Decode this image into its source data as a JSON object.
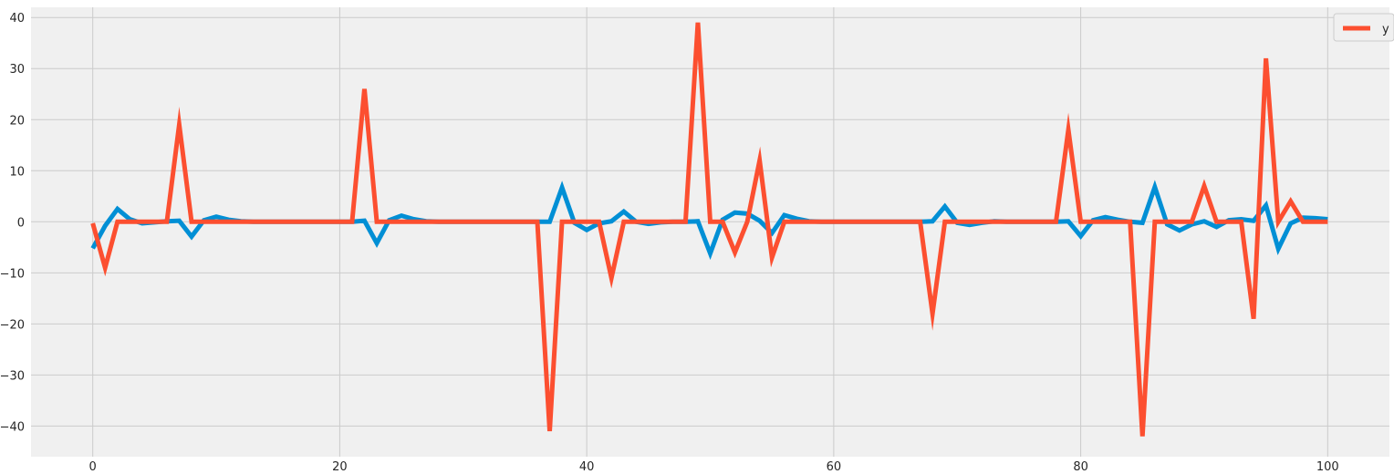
{
  "chart_data": {
    "type": "line",
    "title": "",
    "xlabel": "",
    "ylabel": "",
    "xlim": [
      -5,
      105
    ],
    "ylim": [
      -46,
      42
    ],
    "grid": true,
    "legend_position": "top-right",
    "xticks": [
      0,
      20,
      40,
      60,
      80,
      100
    ],
    "yticks": [
      40,
      30,
      20,
      10,
      0,
      -10,
      -20,
      -30,
      -40
    ],
    "xtick_labels": [
      "0",
      "20",
      "40",
      "60",
      "80",
      "100"
    ],
    "ytick_labels": [
      "40",
      "30",
      "20",
      "10",
      "0",
      "−10",
      "−20",
      "−30",
      "−40"
    ],
    "series": [
      {
        "name": "",
        "color": "#008fd5",
        "in_legend": false,
        "x": [
          0,
          1,
          2,
          3,
          4,
          5,
          6,
          7,
          8,
          9,
          10,
          11,
          12,
          13,
          14,
          15,
          16,
          17,
          18,
          19,
          20,
          21,
          22,
          23,
          24,
          25,
          26,
          27,
          28,
          29,
          30,
          31,
          32,
          33,
          34,
          35,
          36,
          37,
          38,
          39,
          40,
          41,
          42,
          43,
          44,
          45,
          46,
          47,
          48,
          49,
          50,
          51,
          52,
          53,
          54,
          55,
          56,
          57,
          58,
          59,
          60,
          61,
          62,
          63,
          64,
          65,
          66,
          67,
          68,
          69,
          70,
          71,
          72,
          73,
          74,
          75,
          76,
          77,
          78,
          79,
          80,
          81,
          82,
          83,
          84,
          85,
          86,
          87,
          88,
          89,
          90,
          91,
          92,
          93,
          94,
          95,
          96,
          97,
          98,
          99,
          100
        ],
        "values": [
          -5.2,
          -0.8,
          2.5,
          0.5,
          -0.3,
          -0.1,
          0.1,
          0.2,
          -2.9,
          0.3,
          1.0,
          0.4,
          0.1,
          0,
          0,
          0,
          0,
          0,
          0,
          0,
          0,
          0,
          0.2,
          -4.2,
          0.3,
          1.2,
          0.5,
          0.1,
          0,
          0,
          0,
          0,
          0,
          0,
          0,
          0,
          0,
          0,
          6.7,
          -0.2,
          -1.6,
          -0.3,
          0.1,
          2.0,
          0,
          -0.4,
          -0.1,
          0,
          0,
          0.1,
          -6.2,
          0.4,
          1.8,
          1.6,
          0.2,
          -2.2,
          1.3,
          0.6,
          0.1,
          0,
          0,
          0,
          0,
          0,
          0,
          0,
          0,
          0,
          0.1,
          3.0,
          -0.2,
          -0.6,
          -0.2,
          0.1,
          0,
          0,
          0,
          0,
          0,
          0.1,
          -2.8,
          0.3,
          0.9,
          0.4,
          0,
          -0.2,
          6.8,
          -0.5,
          -1.7,
          -0.5,
          0.1,
          -1.0,
          0.3,
          0.5,
          0.2,
          3.2,
          -5.3,
          -0.3,
          0.8,
          0.7,
          0.5
        ]
      },
      {
        "name": "y",
        "color": "#fc4f30",
        "in_legend": true,
        "x": [
          0,
          1,
          2,
          3,
          4,
          5,
          6,
          7,
          8,
          9,
          10,
          11,
          12,
          13,
          14,
          15,
          16,
          17,
          18,
          19,
          20,
          21,
          22,
          23,
          24,
          25,
          26,
          27,
          28,
          29,
          30,
          31,
          32,
          33,
          34,
          35,
          36,
          37,
          38,
          39,
          40,
          41,
          42,
          43,
          44,
          45,
          46,
          47,
          48,
          49,
          50,
          51,
          52,
          53,
          54,
          55,
          56,
          57,
          58,
          59,
          60,
          61,
          62,
          63,
          64,
          65,
          66,
          67,
          68,
          69,
          70,
          71,
          72,
          73,
          74,
          75,
          76,
          77,
          78,
          79,
          80,
          81,
          82,
          83,
          84,
          85,
          86,
          87,
          88,
          89,
          90,
          91,
          92,
          93,
          94,
          95,
          96,
          97,
          98,
          99,
          100
        ],
        "values": [
          -0.3,
          -9,
          0,
          0,
          0,
          0,
          0,
          19,
          0,
          0,
          0,
          0,
          0,
          0,
          0,
          0,
          0,
          0,
          0,
          0,
          0,
          0,
          26,
          0,
          0,
          0,
          0,
          0,
          0,
          0,
          0,
          0,
          0,
          0,
          0,
          0,
          0,
          -41,
          0,
          0,
          0,
          0,
          -11,
          0,
          0,
          0,
          0,
          0,
          0,
          39,
          0,
          0,
          -6,
          0,
          12,
          -7,
          0,
          0,
          0,
          0,
          0,
          0,
          0,
          0,
          0,
          0,
          0,
          0,
          -18,
          0,
          0,
          0,
          0,
          0,
          0,
          0,
          0,
          0,
          0,
          18,
          0,
          0,
          0,
          0,
          0,
          -42,
          0,
          0,
          0,
          0,
          7,
          0,
          0,
          0,
          -19,
          32,
          0,
          4,
          0,
          0,
          0
        ]
      }
    ]
  }
}
